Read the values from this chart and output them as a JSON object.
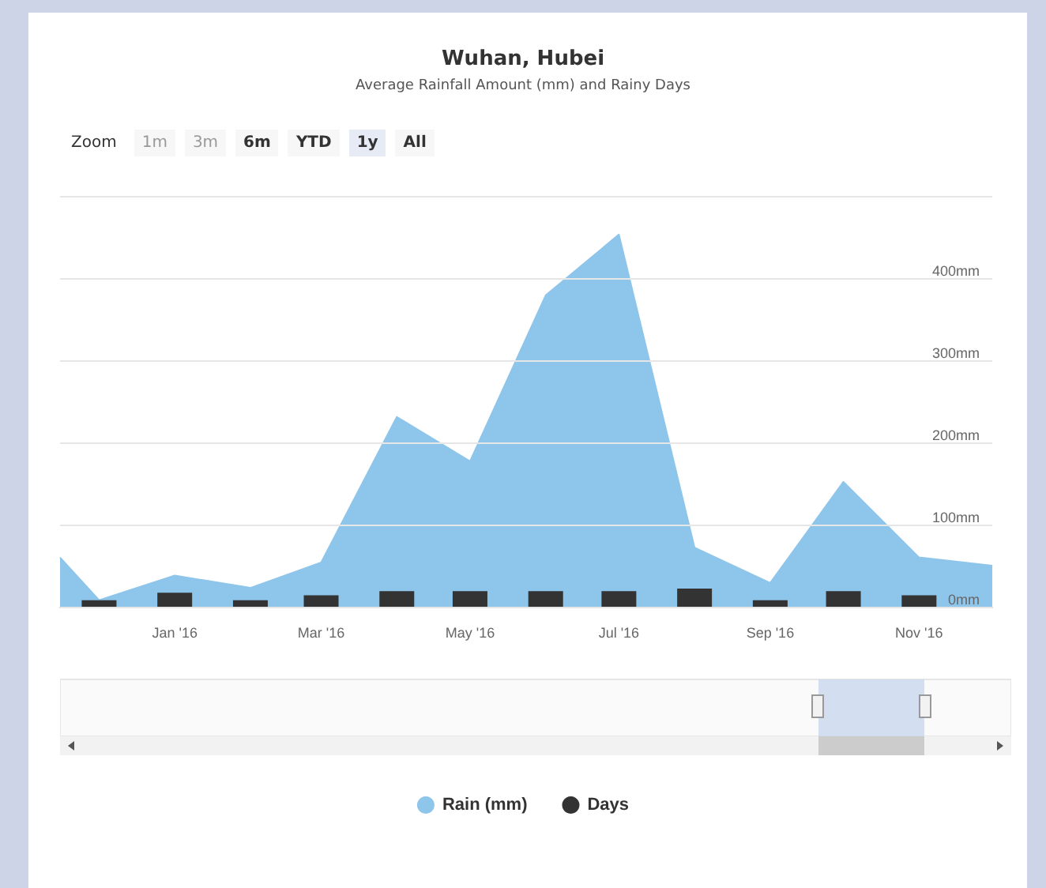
{
  "chart_data": {
    "type": "area",
    "title": "Wuhan, Hubei",
    "subtitle": "Average Rainfall Amount (mm) and Rainy Days",
    "annotations": [
      "Zoom",
      "1m",
      "3m",
      "6m",
      "YTD",
      "1y",
      "All"
    ],
    "x": [
      "2015-11-15",
      "2015-12",
      "2016-01",
      "2016-02",
      "2016-03",
      "2016-04",
      "2016-05",
      "2016-06",
      "2016-07",
      "2016-08",
      "2016-09",
      "2016-10",
      "2016-11",
      "2016-12"
    ],
    "series": [
      {
        "name": "Rain (mm)",
        "color": "#8ec5eb",
        "values": [
          60,
          8,
          38,
          23,
          54,
          231,
          177,
          379,
          453,
          72,
          29,
          152,
          60,
          50
        ]
      },
      {
        "name": "Days",
        "type": "bar",
        "color": "#333333",
        "x": [
          "2015-12",
          "2016-01",
          "2016-02",
          "2016-03",
          "2016-04",
          "2016-05",
          "2016-06",
          "2016-07",
          "2016-08",
          "2016-09",
          "2016-10",
          "2016-11"
        ],
        "values": [
          8,
          17,
          8,
          14,
          19,
          19,
          19,
          19,
          22,
          8,
          19,
          14
        ]
      }
    ],
    "xlim": [
      "2015-11-15",
      "2016-12"
    ],
    "xticks": [
      {
        "value": "2016-01",
        "label": "Jan '16"
      },
      {
        "value": "2016-03",
        "label": "Mar '16"
      },
      {
        "value": "2016-05",
        "label": "May '16"
      },
      {
        "value": "2016-07",
        "label": "Jul '16"
      },
      {
        "value": "2016-09",
        "label": "Sep '16"
      },
      {
        "value": "2016-11",
        "label": "Nov '16"
      }
    ],
    "ylim": [
      0,
      500
    ],
    "yticks": [
      {
        "value": 0,
        "label": "0mm"
      },
      {
        "value": 100,
        "label": "100mm"
      },
      {
        "value": 200,
        "label": "200mm"
      },
      {
        "value": 300,
        "label": "300mm"
      },
      {
        "value": 400,
        "label": "400mm"
      },
      {
        "value": 500,
        "label": null
      }
    ],
    "grid": "y",
    "legend": "bottom"
  }
}
